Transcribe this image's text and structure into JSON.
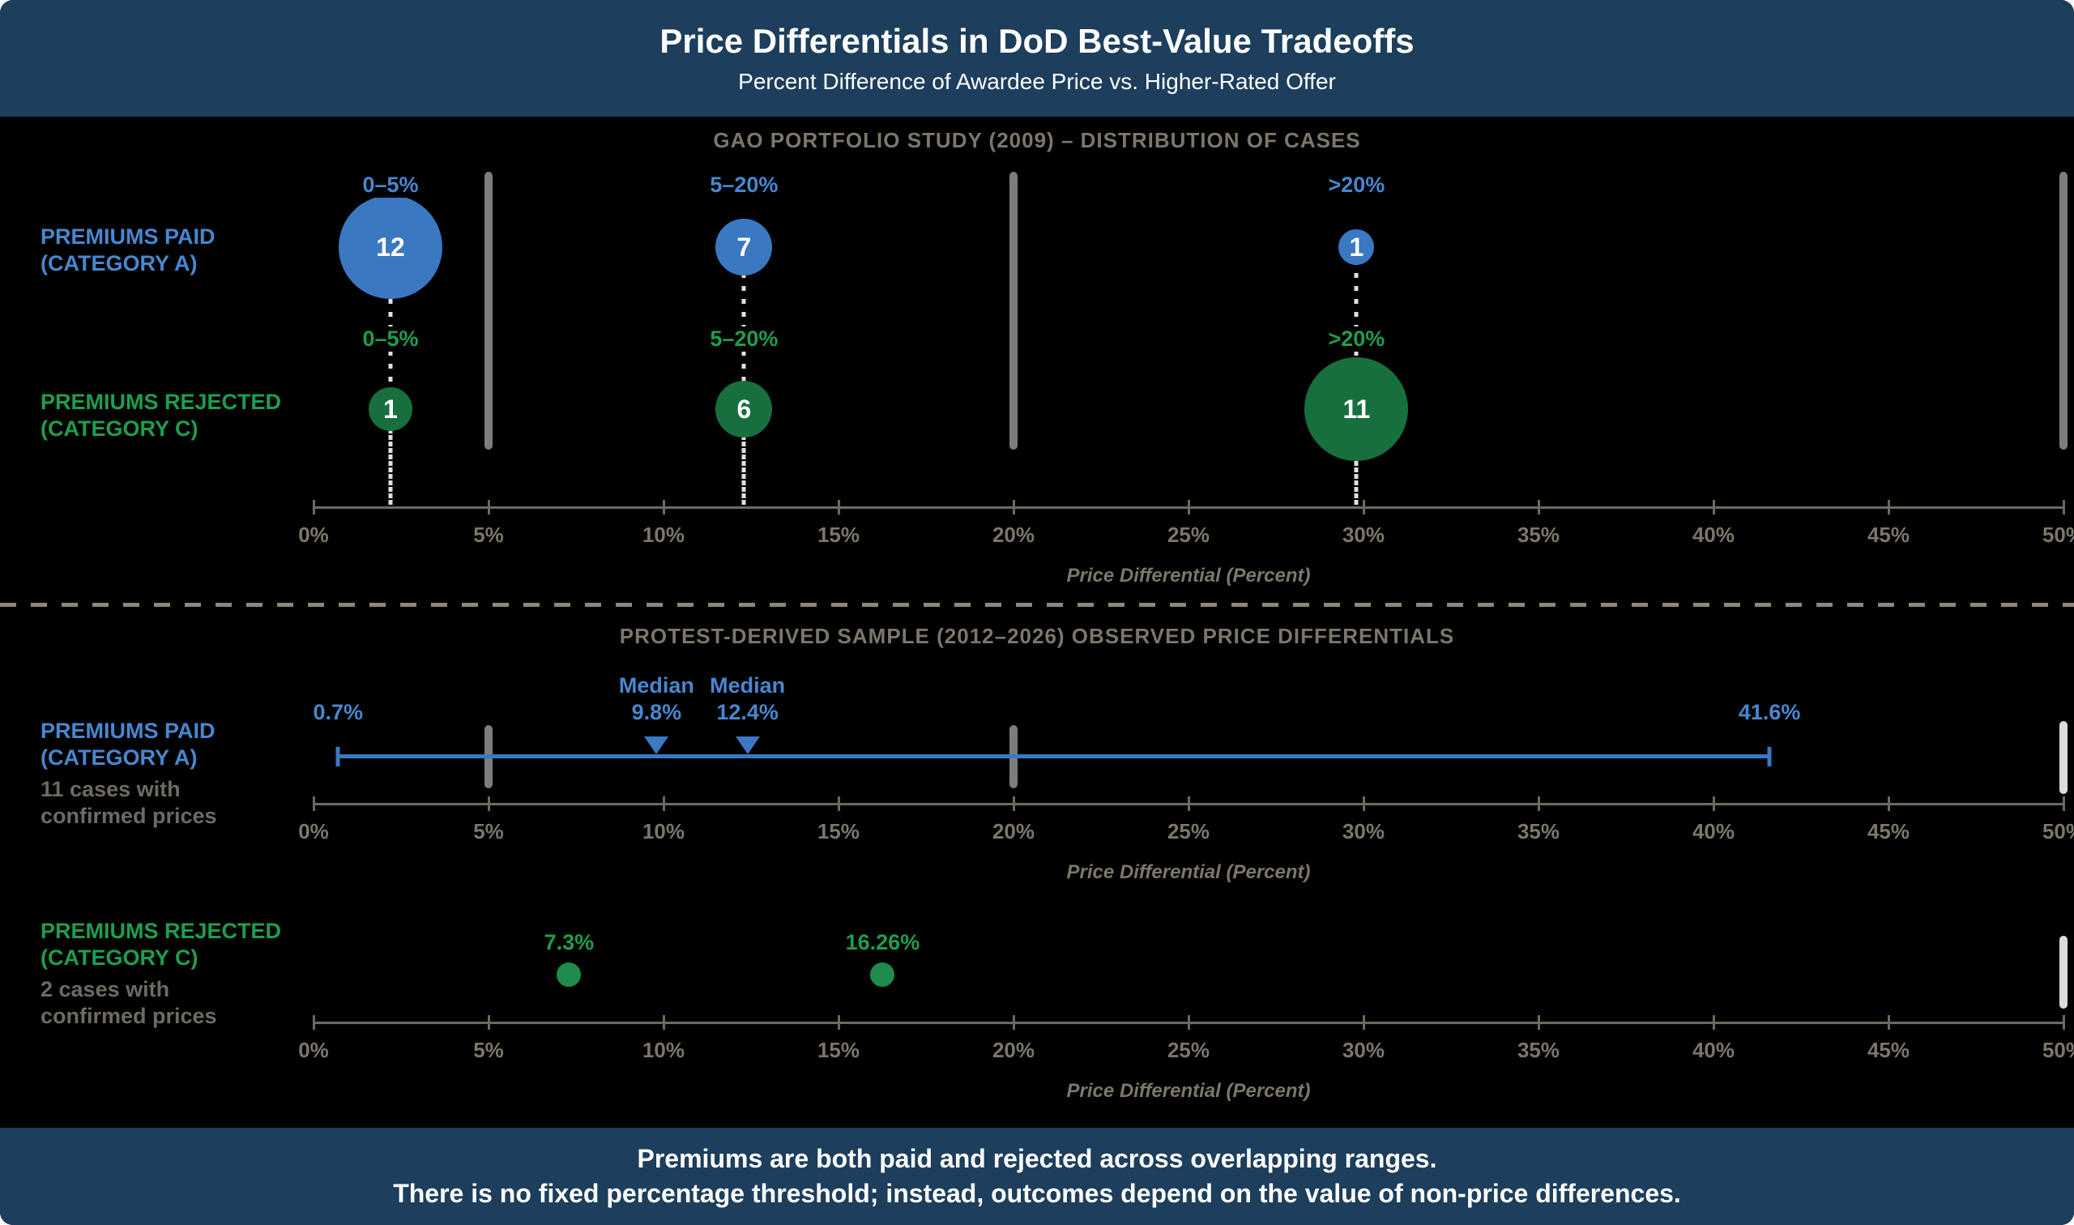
{
  "header": {
    "title": "Price Differentials in DoD Best-Value Tradeoffs",
    "subtitle": "Percent Difference of Awardee Price vs. Higher-Rated Offer"
  },
  "footer": {
    "line1": "Premiums are both paid and rejected across overlapping ranges.",
    "line2": "There is no fixed percentage threshold; instead, outcomes depend on the value of non-price differences."
  },
  "colors": {
    "navy": "#1d3e5c",
    "blue": "#3a78c2",
    "blue_text": "#4787cf",
    "green": "#176f3d",
    "green_text": "#1d9e50",
    "green_dot": "#1e8c4a",
    "gray_text": "#7c766b",
    "axis_color": "#6e6960",
    "divider": "#7d7d7d",
    "divider_light": "#dcdcdc",
    "connector": "#e0e0e0",
    "separator": "#8d877b",
    "background": "#000000"
  },
  "chart_data": [
    {
      "type": "bubble",
      "title": "GAO PORTFOLIO STUDY (2009) – DISTRIBUTION OF CASES",
      "xlabel": "Price Differential (Percent)",
      "xlim": [
        0,
        50
      ],
      "x_ticks": [
        "0%",
        "5%",
        "10%",
        "15%",
        "20%",
        "25%",
        "30%",
        "35%",
        "40%",
        "45%",
        "50%"
      ],
      "divider_positions_pct": [
        5,
        20,
        50
      ],
      "series": [
        {
          "name_line1": "PREMIUMS PAID",
          "name_line2": "(CATEGORY A)",
          "color": "#3a78c2",
          "points": [
            {
              "bin": "0–5%",
              "count": 12,
              "x": 2.2,
              "r": 64
            },
            {
              "bin": "5–20%",
              "count": 7,
              "x": 12.3,
              "r": 35
            },
            {
              "bin": ">20%",
              "count": 1,
              "x": 29.8,
              "r": 22
            }
          ]
        },
        {
          "name_line1": "PREMIUMS REJECTED",
          "name_line2": "(CATEGORY C)",
          "color": "#176f3d",
          "points": [
            {
              "bin": "0–5%",
              "count": 1,
              "x": 2.2,
              "r": 27
            },
            {
              "bin": "5–20%",
              "count": 6,
              "x": 12.3,
              "r": 35
            },
            {
              "bin": ">20%",
              "count": 11,
              "x": 29.8,
              "r": 64
            }
          ]
        }
      ]
    },
    {
      "type": "range",
      "title": "PROTEST-DERIVED SAMPLE (2012–2026) OBSERVED PRICE DIFFERENTIALS",
      "xlabel": "Price Differential (Percent)",
      "xlim": [
        0,
        50
      ],
      "x_ticks": [
        "0%",
        "5%",
        "10%",
        "15%",
        "20%",
        "25%",
        "30%",
        "35%",
        "40%",
        "45%",
        "50%"
      ],
      "divider_positions_pct": [
        5,
        20,
        50
      ],
      "paid": {
        "name_line1": "PREMIUMS PAID",
        "name_line2": "(CATEGORY A)",
        "note_line1": "11 cases with",
        "note_line2": "confirmed prices",
        "range_min": 0.7,
        "range_max": 41.6,
        "range_min_label": "0.7%",
        "range_max_label": "41.6%",
        "medians": [
          {
            "label": "Median",
            "value_label": "9.8%",
            "x": 9.8
          },
          {
            "label": "Median",
            "value_label": "12.4%",
            "x": 12.4
          }
        ]
      },
      "rejected": {
        "name_line1": "PREMIUMS REJECTED",
        "name_line2": "(CATEGORY C)",
        "note_line1": "2 cases with",
        "note_line2": "confirmed prices",
        "points": [
          {
            "value": 7.3,
            "label": "7.3%"
          },
          {
            "value": 16.26,
            "label": "16.26%"
          }
        ]
      }
    }
  ]
}
